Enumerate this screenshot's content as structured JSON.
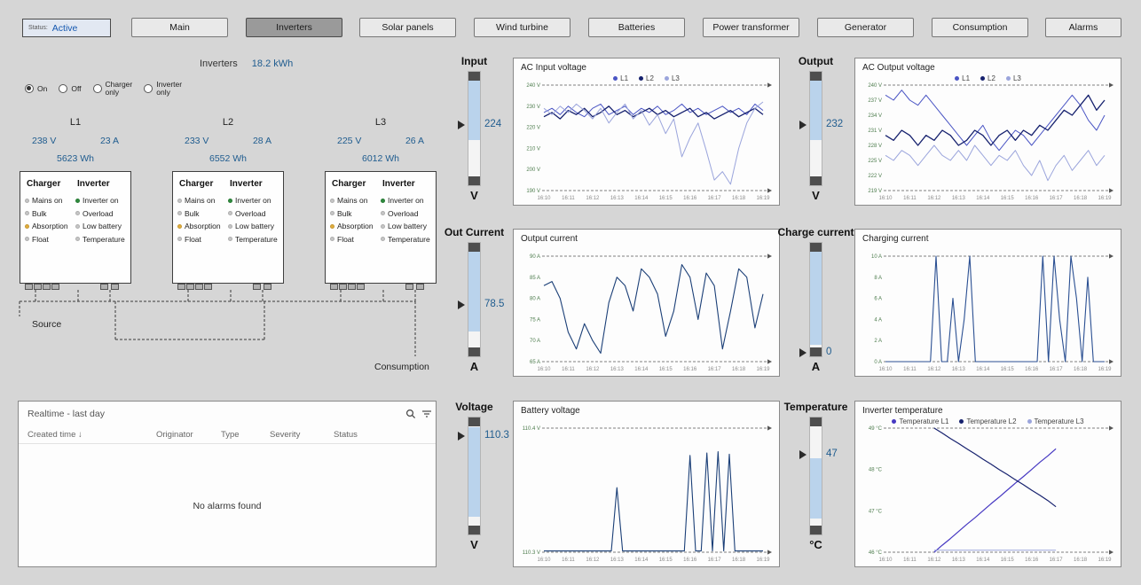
{
  "topbar": {
    "status_label": "Status:",
    "status_value": "Active",
    "active_button": "Inverters",
    "buttons": [
      "Main",
      "Inverters",
      "Solar panels",
      "Wind turbine",
      "Batteries",
      "Power transformer",
      "Generator",
      "Consumption",
      "Alarms"
    ]
  },
  "inverters_summary": {
    "label": "Inverters",
    "value": "18.2 kWh"
  },
  "mode_options": [
    {
      "label": "On",
      "selected": true
    },
    {
      "label": "Off",
      "selected": false
    },
    {
      "label": "Charger\nonly",
      "selected": false
    },
    {
      "label": "Inverter\nonly",
      "selected": false
    }
  ],
  "phases": [
    {
      "name": "L1",
      "voltage": "238 V",
      "current": "23 A",
      "energy": "5623 Wh"
    },
    {
      "name": "L2",
      "voltage": "233 V",
      "current": "28 A",
      "energy": "6552 Wh"
    },
    {
      "name": "L3",
      "voltage": "225 V",
      "current": "26 A",
      "energy": "6012 Wh"
    }
  ],
  "unit_box": {
    "charger_title": "Charger",
    "inverter_title": "Inverter",
    "charger_items": [
      {
        "label": "Mains on",
        "state": "off"
      },
      {
        "label": "Bulk",
        "state": "off"
      },
      {
        "label": "Absorption",
        "state": "amber"
      },
      {
        "label": "Float",
        "state": "off"
      }
    ],
    "inverter_items": [
      {
        "label": "Inverter on",
        "state": "green"
      },
      {
        "label": "Overload",
        "state": "off"
      },
      {
        "label": "Low battery",
        "state": "off"
      },
      {
        "label": "Temperature",
        "state": "off"
      }
    ]
  },
  "led_colors": {
    "off": "#c6c6c6",
    "green": "#2e8b3d",
    "amber": "#e2ae3c"
  },
  "labels": {
    "source": "Source",
    "consumption": "Consumption"
  },
  "gauges": [
    {
      "id": "input",
      "title": "Input",
      "value": "224",
      "unit": "V",
      "pointer": 0.47,
      "blue_zone": [
        0.08,
        0.6
      ]
    },
    {
      "id": "out_current",
      "title": "Out Current",
      "value": "78.5",
      "unit": "A",
      "pointer": 0.55,
      "blue_zone": [
        0.08,
        0.78
      ]
    },
    {
      "id": "voltage",
      "title": "Voltage",
      "value": "110.3",
      "unit": "V",
      "pointer": 0.16,
      "blue_zone": [
        0.08,
        0.85
      ]
    },
    {
      "id": "output",
      "title": "Output",
      "value": "232",
      "unit": "V",
      "pointer": 0.47,
      "blue_zone": [
        0.08,
        0.6
      ]
    },
    {
      "id": "charge_current",
      "title": "Charge current",
      "value": "0",
      "unit": "A",
      "pointer": 0.97,
      "blue_zone": [
        0.08,
        0.9
      ]
    },
    {
      "id": "temperature",
      "title": "Temperature",
      "value": "47",
      "unit": "°C",
      "pointer": 0.32,
      "blue_zone": [
        0.35,
        0.86
      ]
    }
  ],
  "alarms": {
    "title": "Realtime - last day",
    "columns": [
      "Created time",
      "Originator",
      "Type",
      "Severity",
      "Status"
    ],
    "sort_indicator": "↓",
    "empty": "No alarms found"
  },
  "chart_data": [
    {
      "key": "ac_input_voltage",
      "type": "line",
      "title": "AC Input voltage",
      "ylim": [
        190,
        240
      ],
      "yticks": [
        {
          "v": 240,
          "label": "240 V"
        },
        {
          "v": 230,
          "label": "230 V"
        },
        {
          "v": 220,
          "label": "220 V"
        },
        {
          "v": 210,
          "label": "210 V"
        },
        {
          "v": 200,
          "label": "200 V"
        },
        {
          "v": 190,
          "label": "190 V"
        }
      ],
      "xticks": [
        "16:10",
        "16:11",
        "16:12",
        "16:13",
        "16:14",
        "16:15",
        "16:16",
        "16:17",
        "16:18",
        "16:19"
      ],
      "legend": [
        {
          "label": "L1",
          "color": "#4a55c4"
        },
        {
          "label": "L2",
          "color": "#16216e"
        },
        {
          "label": "L3",
          "color": "#9ba5dc"
        }
      ],
      "series": [
        {
          "name": "L1",
          "color": "#4a55c4",
          "width": 1,
          "values": [
            227,
            229,
            226,
            230,
            227,
            225,
            229,
            231,
            226,
            228,
            230,
            226,
            229,
            227,
            230,
            226,
            228,
            231,
            227,
            229,
            226,
            228,
            230,
            227,
            229,
            226,
            231,
            228
          ]
        },
        {
          "name": "L2",
          "color": "#16216e",
          "width": 1.3,
          "values": [
            225,
            227,
            224,
            228,
            226,
            229,
            225,
            227,
            230,
            226,
            228,
            225,
            227,
            229,
            226,
            228,
            225,
            227,
            229,
            225,
            227,
            224,
            226,
            228,
            225,
            227,
            229,
            226
          ]
        },
        {
          "name": "L3",
          "color": "#9ba5dc",
          "width": 1,
          "values": [
            229,
            226,
            230,
            227,
            231,
            228,
            224,
            229,
            222,
            227,
            231,
            224,
            228,
            221,
            226,
            217,
            224,
            206,
            215,
            222,
            209,
            195,
            199,
            193,
            210,
            222,
            229,
            232
          ]
        }
      ]
    },
    {
      "key": "ac_output_voltage",
      "type": "line",
      "title": "AC Output voltage",
      "ylim": [
        219,
        240
      ],
      "yticks": [
        {
          "v": 240,
          "label": "240 V"
        },
        {
          "v": 237,
          "label": "237 V"
        },
        {
          "v": 234,
          "label": "234 V"
        },
        {
          "v": 231,
          "label": "231 V"
        },
        {
          "v": 228,
          "label": "228 V"
        },
        {
          "v": 225,
          "label": "225 V"
        },
        {
          "v": 222,
          "label": "222 V"
        },
        {
          "v": 219,
          "label": "219 V"
        }
      ],
      "xticks": [
        "16:10",
        "16:11",
        "16:12",
        "16:13",
        "16:14",
        "16:15",
        "16:16",
        "16:17",
        "16:18",
        "16:19"
      ],
      "legend": [
        {
          "label": "L1",
          "color": "#4a55c4"
        },
        {
          "label": "L2",
          "color": "#16216e"
        },
        {
          "label": "L3",
          "color": "#9ba5dc"
        }
      ],
      "series": [
        {
          "name": "L1",
          "color": "#4a55c4",
          "width": 1,
          "values": [
            238,
            237,
            239,
            237,
            236,
            238,
            236,
            234,
            232,
            230,
            228,
            230,
            232,
            229,
            227,
            229,
            231,
            230,
            228,
            230,
            232,
            234,
            236,
            238,
            236,
            233,
            231,
            234
          ]
        },
        {
          "name": "L2",
          "color": "#16216e",
          "width": 1.3,
          "values": [
            230,
            229,
            231,
            230,
            228,
            230,
            229,
            231,
            230,
            228,
            229,
            231,
            230,
            228,
            230,
            231,
            229,
            231,
            230,
            232,
            231,
            233,
            235,
            234,
            236,
            238,
            235,
            237
          ]
        },
        {
          "name": "L3",
          "color": "#9ba5dc",
          "width": 1,
          "values": [
            226,
            225,
            227,
            226,
            224,
            226,
            228,
            226,
            225,
            227,
            225,
            228,
            226,
            224,
            226,
            225,
            227,
            224,
            222,
            225,
            221,
            224,
            226,
            223,
            225,
            227,
            224,
            226
          ]
        }
      ]
    },
    {
      "key": "output_current",
      "type": "line",
      "title": "Output current",
      "ylim": [
        65,
        90
      ],
      "yticks": [
        {
          "v": 90,
          "label": "90 A"
        },
        {
          "v": 85,
          "label": "85 A"
        },
        {
          "v": 80,
          "label": "80 A"
        },
        {
          "v": 75,
          "label": "75 A"
        },
        {
          "v": 70,
          "label": "70 A"
        },
        {
          "v": 65,
          "label": "65 A"
        }
      ],
      "xticks": [
        "16:10",
        "16:11",
        "16:12",
        "16:13",
        "16:14",
        "16:15",
        "16:16",
        "16:17",
        "16:18",
        "16:19"
      ],
      "series": [
        {
          "name": "Output current",
          "color": "#1b3f77",
          "width": 1.1,
          "values": [
            83,
            84,
            80,
            72,
            68,
            74,
            70,
            67,
            79,
            85,
            83,
            77,
            87,
            85,
            81,
            71,
            77,
            88,
            85,
            75,
            86,
            83,
            68,
            77,
            87,
            85,
            73,
            81
          ]
        }
      ]
    },
    {
      "key": "charging_current",
      "type": "line",
      "title": "Charging current",
      "ylim": [
        0,
        10
      ],
      "yticks": [
        {
          "v": 10,
          "label": "10 A"
        },
        {
          "v": 8,
          "label": "8 A"
        },
        {
          "v": 6,
          "label": "6 A"
        },
        {
          "v": 4,
          "label": "4 A"
        },
        {
          "v": 2,
          "label": "2 A"
        },
        {
          "v": 0,
          "label": "0 A"
        }
      ],
      "xticks": [
        "16:10",
        "16:11",
        "16:12",
        "16:13",
        "16:14",
        "16:15",
        "16:16",
        "16:17",
        "16:18",
        "16:19"
      ],
      "series": [
        {
          "name": "Charging current",
          "color": "#2a4f92",
          "width": 1.1,
          "values": [
            0,
            0,
            0,
            0,
            0,
            0,
            0,
            0,
            0,
            10,
            0,
            0,
            6,
            0,
            4,
            10,
            0,
            0,
            0,
            0,
            0,
            0,
            0,
            0,
            0,
            0,
            0,
            0,
            10,
            0,
            10,
            4,
            0,
            10,
            6,
            0,
            8,
            0,
            0,
            0
          ]
        }
      ]
    },
    {
      "key": "battery_voltage",
      "type": "line",
      "title": "Battery voltage",
      "ylim": [
        110.3,
        110.4
      ],
      "yticks": [
        {
          "v": 110.4,
          "label": "110.4 V"
        },
        {
          "v": 110.3,
          "label": "110.3 V"
        }
      ],
      "xticks": [
        "16:10",
        "16:11",
        "16:12",
        "16:13",
        "16:14",
        "16:15",
        "16:16",
        "16:17",
        "16:18",
        "16:19"
      ],
      "series": [
        {
          "name": "Battery voltage",
          "color": "#1b3f77",
          "width": 1.1,
          "values": [
            110.301,
            110.301,
            110.301,
            110.301,
            110.301,
            110.301,
            110.301,
            110.301,
            110.301,
            110.301,
            110.301,
            110.301,
            110.301,
            110.352,
            110.301,
            110.301,
            110.301,
            110.301,
            110.301,
            110.301,
            110.301,
            110.301,
            110.301,
            110.301,
            110.301,
            110.301,
            110.378,
            110.301,
            110.301,
            110.38,
            110.301,
            110.381,
            110.301,
            110.379,
            110.301,
            110.301,
            110.301,
            110.301,
            110.301,
            110.301
          ]
        }
      ]
    },
    {
      "key": "inverter_temperature",
      "type": "line",
      "title": "Inverter temperature",
      "ylim": [
        46,
        49
      ],
      "yticks": [
        {
          "v": 49,
          "label": "49 °C"
        },
        {
          "v": 48,
          "label": "48 °C"
        },
        {
          "v": 47,
          "label": "47 °C"
        },
        {
          "v": 46,
          "label": "46 °C"
        }
      ],
      "xticks": [
        "16:10",
        "16:11",
        "16:12",
        "16:13",
        "16:14",
        "16:15",
        "16:16",
        "16:17",
        "16:18",
        "16:19"
      ],
      "legend": [
        {
          "label": "Temperature L1",
          "color": "#4638c2"
        },
        {
          "label": "Temperature L2",
          "color": "#16216e"
        },
        {
          "label": "Temperature L3",
          "color": "#9ba5dc"
        }
      ],
      "series": [
        {
          "name": "Temperature L1",
          "color": "#4638c2",
          "width": 1.2,
          "values": [
            null,
            null,
            null,
            null,
            null,
            null,
            46,
            46.17,
            46.33,
            46.5,
            46.67,
            46.83,
            47,
            47.17,
            47.33,
            47.5,
            47.67,
            47.83,
            48,
            48.17,
            48.33,
            48.5,
            null,
            null,
            null,
            null,
            null,
            null
          ]
        },
        {
          "name": "Temperature L2",
          "color": "#16216e",
          "width": 1.2,
          "values": [
            null,
            null,
            null,
            null,
            null,
            null,
            49,
            48.88,
            48.75,
            48.63,
            48.5,
            48.38,
            48.25,
            48.13,
            48,
            47.88,
            47.75,
            47.63,
            47.5,
            47.38,
            47.25,
            47.1,
            null,
            null,
            null,
            null,
            null,
            null
          ]
        },
        {
          "name": "Temperature L3",
          "color": "#9ba5dc",
          "width": 1,
          "values": [
            null,
            null,
            null,
            null,
            null,
            null,
            46.05,
            46.05,
            46.05,
            46.05,
            46.05,
            46.05,
            46.05,
            46.05,
            46.05,
            46.05,
            46.05,
            46.05,
            46.05,
            46.05,
            46.05,
            46.05,
            null,
            null,
            null,
            null,
            null,
            null
          ]
        }
      ]
    }
  ]
}
